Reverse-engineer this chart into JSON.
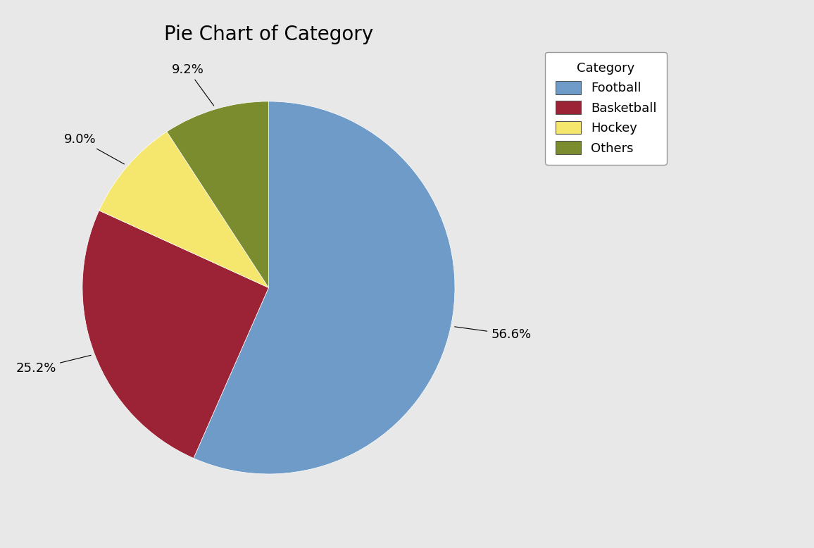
{
  "title": "Pie Chart of Category",
  "categories": [
    "Football",
    "Basketball",
    "Hockey",
    "Others"
  ],
  "values": [
    56.6,
    25.2,
    9.0,
    9.2
  ],
  "colors": [
    "#6F9BC8",
    "#9B2335",
    "#F5E76E",
    "#7A8C2E"
  ],
  "background_color": "#E8E8E8",
  "title_fontsize": 20,
  "legend_title": "Category",
  "autopct_labels": [
    "56.6%",
    "25.2%",
    "9.0%",
    "9.2%"
  ],
  "startangle": 90,
  "label_fontsize": 13,
  "legend_fontsize": 13
}
